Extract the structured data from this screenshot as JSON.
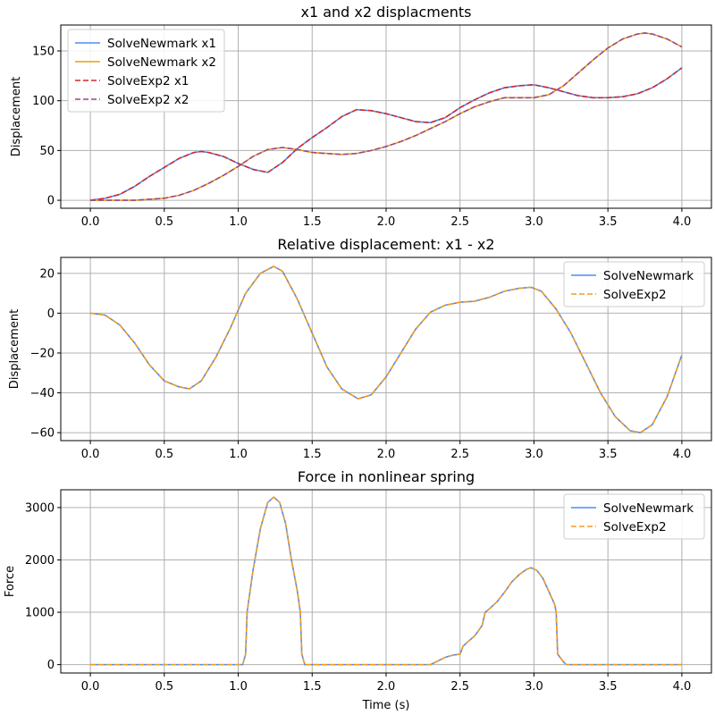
{
  "chart_data": [
    {
      "type": "line",
      "title": "x1 and x2 displacments",
      "xlabel": "",
      "ylabel": "Displacement",
      "xlim": [
        -0.2,
        4.2
      ],
      "ylim": [
        -8,
        176
      ],
      "xticks": [
        0.0,
        0.5,
        1.0,
        1.5,
        2.0,
        2.5,
        3.0,
        3.5,
        4.0
      ],
      "yticks": [
        0,
        50,
        100,
        150
      ],
      "grid": true,
      "legend": "upper left",
      "series": [
        {
          "name": "SolveNewmark x1",
          "color": "#4c8df6",
          "style": "solid",
          "key": "a"
        },
        {
          "name": "SolveNewmark x2",
          "color": "#e8a016",
          "style": "solid",
          "key": "b"
        },
        {
          "name": "SolveExp2 x1",
          "color": "#d62728",
          "style": "dashed",
          "key": "a"
        },
        {
          "name": "SolveExp2 x2",
          "color": "#9a4a8c",
          "style": "dashed",
          "key": "b"
        }
      ],
      "curves": {
        "a": {
          "x": [
            0,
            0.1,
            0.2,
            0.3,
            0.4,
            0.5,
            0.6,
            0.7,
            0.75,
            0.8,
            0.9,
            1.0,
            1.1,
            1.2,
            1.3,
            1.4,
            1.5,
            1.6,
            1.7,
            1.8,
            1.9,
            2.0,
            2.1,
            2.2,
            2.3,
            2.4,
            2.5,
            2.6,
            2.7,
            2.8,
            2.9,
            3.0,
            3.1,
            3.2,
            3.3,
            3.4,
            3.5,
            3.6,
            3.7,
            3.8,
            3.9,
            4.0
          ],
          "y": [
            0,
            2,
            6,
            14,
            24,
            33,
            42,
            48,
            49,
            48,
            44,
            37,
            31,
            28,
            38,
            52,
            63,
            73,
            84,
            91,
            90,
            87,
            83,
            79,
            78,
            83,
            93,
            101,
            108,
            113,
            115,
            116,
            113,
            109,
            105,
            103,
            103,
            104,
            107,
            113,
            122,
            133
          ]
        },
        "b": {
          "x": [
            0,
            0.1,
            0.2,
            0.3,
            0.4,
            0.5,
            0.6,
            0.7,
            0.8,
            0.9,
            1.0,
            1.1,
            1.2,
            1.3,
            1.4,
            1.5,
            1.6,
            1.7,
            1.8,
            1.9,
            2.0,
            2.1,
            2.2,
            2.3,
            2.4,
            2.5,
            2.6,
            2.7,
            2.8,
            2.9,
            3.0,
            3.1,
            3.2,
            3.3,
            3.4,
            3.5,
            3.6,
            3.7,
            3.75,
            3.8,
            3.9,
            4.0
          ],
          "y": [
            0,
            0,
            0,
            0,
            1,
            2,
            5,
            10,
            17,
            25,
            34,
            44,
            51,
            53,
            51,
            48,
            47,
            46,
            47,
            50,
            54,
            59,
            65,
            72,
            79,
            87,
            94,
            99,
            103,
            103,
            103,
            106,
            115,
            128,
            141,
            153,
            162,
            167,
            168,
            167,
            162,
            154
          ]
        }
      }
    },
    {
      "type": "line",
      "title": "Relative displacement: x1 - x2",
      "xlabel": "",
      "ylabel": "Displacement",
      "xlim": [
        -0.2,
        4.2
      ],
      "ylim": [
        -64,
        28
      ],
      "xticks": [
        0.0,
        0.5,
        1.0,
        1.5,
        2.0,
        2.5,
        3.0,
        3.5,
        4.0
      ],
      "yticks": [
        -60,
        -40,
        -20,
        0,
        20
      ],
      "grid": true,
      "legend": "upper right",
      "series": [
        {
          "name": "SolveNewmark",
          "color": "#4c8df6",
          "style": "solid",
          "key": "r"
        },
        {
          "name": "SolveExp2",
          "color": "#f39c1f",
          "style": "dashed",
          "key": "r"
        }
      ],
      "curves": {
        "r": {
          "x": [
            0,
            0.1,
            0.2,
            0.3,
            0.4,
            0.5,
            0.6,
            0.67,
            0.75,
            0.85,
            0.95,
            1.05,
            1.15,
            1.24,
            1.3,
            1.4,
            1.5,
            1.6,
            1.7,
            1.81,
            1.9,
            2.0,
            2.1,
            2.2,
            2.3,
            2.4,
            2.5,
            2.6,
            2.7,
            2.8,
            2.9,
            2.98,
            3.05,
            3.15,
            3.25,
            3.35,
            3.45,
            3.55,
            3.65,
            3.72,
            3.8,
            3.9,
            4.0
          ],
          "y": [
            0,
            -1,
            -6,
            -15,
            -26,
            -34,
            -37,
            -38,
            -34,
            -22,
            -7,
            10,
            20,
            23.5,
            21,
            7,
            -10,
            -27,
            -38,
            -43,
            -41,
            -32,
            -20,
            -8,
            0.5,
            4,
            5.5,
            6,
            8,
            11,
            12.5,
            13,
            11,
            2,
            -10,
            -25,
            -40,
            -52,
            -59,
            -60,
            -56,
            -42,
            -21
          ]
        }
      }
    },
    {
      "type": "line",
      "title": "Force in nonlinear spring",
      "xlabel": "Time (s)",
      "ylabel": "Force",
      "xlim": [
        -0.2,
        4.2
      ],
      "ylim": [
        -160,
        3340
      ],
      "xticks": [
        0.0,
        0.5,
        1.0,
        1.5,
        2.0,
        2.5,
        3.0,
        3.5,
        4.0
      ],
      "yticks": [
        0,
        1000,
        2000,
        3000
      ],
      "grid": true,
      "legend": "upper right",
      "series": [
        {
          "name": "SolveNewmark",
          "color": "#4c8df6",
          "style": "solid",
          "key": "f"
        },
        {
          "name": "SolveExp2",
          "color": "#f39c1f",
          "style": "dashed",
          "key": "f"
        }
      ],
      "curves": {
        "f": {
          "x": [
            0,
            1.0,
            1.03,
            1.05,
            1.06,
            1.1,
            1.15,
            1.2,
            1.24,
            1.28,
            1.32,
            1.36,
            1.4,
            1.42,
            1.43,
            1.45,
            2.3,
            2.35,
            2.4,
            2.45,
            2.5,
            2.52,
            2.55,
            2.6,
            2.65,
            2.67,
            2.7,
            2.75,
            2.8,
            2.85,
            2.9,
            2.95,
            2.98,
            3.02,
            3.06,
            3.1,
            3.14,
            3.15,
            3.16,
            3.2,
            3.22,
            4.0
          ],
          "y": [
            0,
            0,
            0,
            200,
            1000,
            1800,
            2600,
            3100,
            3200,
            3100,
            2700,
            2000,
            1400,
            1000,
            200,
            0,
            0,
            70,
            140,
            180,
            200,
            350,
            430,
            550,
            750,
            1000,
            1070,
            1200,
            1380,
            1580,
            1720,
            1820,
            1850,
            1800,
            1650,
            1400,
            1150,
            1000,
            200,
            50,
            0,
            0
          ]
        }
      }
    }
  ]
}
